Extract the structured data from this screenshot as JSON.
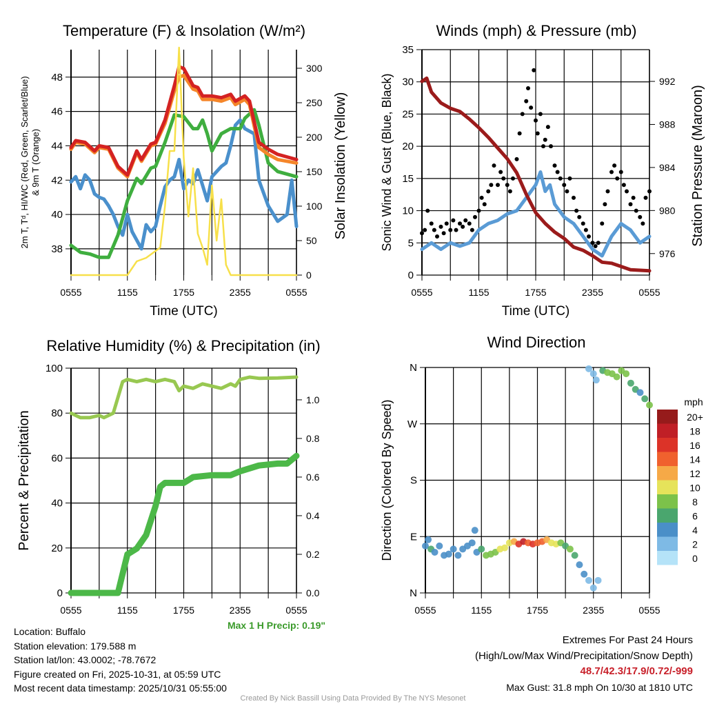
{
  "chart_data": [
    {
      "type": "line",
      "title": "Temperature (F) & Insolation (W/m²)",
      "xlabel": "Time (UTC)",
      "ylabel": [
        "2m T, Tᵈ, HI/WC (Red, Green, Scarlet/Blue)",
        "& 9m T (Orange)"
      ],
      "y2label": "Solar Insolation (Yellow)",
      "xticks": [
        "0555",
        "1155",
        "1755",
        "2355",
        "0555"
      ],
      "ylim": [
        36.47,
        49.6
      ],
      "yticks": [
        38,
        40,
        42,
        44,
        46,
        48
      ],
      "y2lim": [
        0,
        327
      ],
      "y2ticks": [
        0,
        50,
        100,
        150,
        200,
        250,
        300
      ],
      "series": [
        {
          "name": "HI/WC",
          "color": "#4a90cc",
          "axis": "left",
          "x": [
            0,
            0.5,
            1,
            1.5,
            2,
            2.5,
            3,
            3.5,
            4,
            4.5,
            5,
            5.5,
            6,
            6.5,
            7,
            7.5,
            8,
            8.5,
            9,
            9.5,
            10,
            10.5,
            11,
            11.5,
            12,
            12.5,
            13,
            13.5,
            14,
            14.5,
            15,
            16,
            16.5,
            17,
            17.5,
            18,
            18.5,
            19.5,
            20,
            21,
            22,
            23,
            23.5,
            24
          ],
          "y": [
            41.9,
            42.2,
            41.5,
            42.3,
            42.0,
            41.2,
            41.0,
            40.9,
            40.5,
            40.0,
            39.3,
            38.8,
            40.0,
            39.0,
            38.5,
            38.0,
            39.4,
            39.0,
            39.3,
            40.5,
            41.6,
            42.0,
            42.2,
            43.2,
            41.5,
            42.0,
            41.8,
            42.6,
            41.7,
            40.8,
            42.2,
            42.8,
            43.0,
            44.0,
            45.2,
            45.5,
            45.0,
            44.7,
            42.0,
            40.5,
            39.6,
            40.0,
            42.0,
            39.3
          ]
        },
        {
          "name": "Dew point",
          "color": "#3fae3f",
          "axis": "left",
          "x": [
            0,
            1,
            2,
            3,
            4,
            5,
            6,
            7,
            7.5,
            8.5,
            9,
            10,
            11,
            12,
            13,
            13.5,
            14,
            14.5,
            15,
            16,
            17,
            18,
            18.5,
            19.5,
            20,
            21,
            22,
            24
          ],
          "y": [
            38.2,
            37.8,
            37.7,
            37.5,
            37.5,
            38.8,
            40.8,
            42.1,
            41.8,
            42.7,
            42.8,
            44.2,
            45.8,
            45.7,
            45.0,
            45.0,
            45.5,
            44.7,
            43.7,
            44.7,
            45.0,
            45.0,
            45.6,
            46.1,
            45.2,
            43.0,
            42.5,
            42.2
          ]
        },
        {
          "name": "9m T",
          "color": "#f5862a",
          "axis": "left",
          "x": [
            0,
            0.5,
            1.5,
            2.5,
            3,
            4,
            5,
            6,
            7,
            7.5,
            8.5,
            9,
            10,
            11,
            11.5,
            12,
            13,
            13.5,
            14,
            15,
            16,
            17,
            17.5,
            18.5,
            19,
            20,
            21,
            22,
            24
          ],
          "y": [
            43.8,
            44.2,
            44.1,
            43.6,
            43.9,
            43.8,
            42.7,
            42.2,
            43.6,
            43.1,
            44.0,
            44.1,
            45.3,
            47.2,
            48.0,
            48.1,
            47.3,
            47.2,
            46.7,
            46.7,
            46.6,
            46.8,
            46.4,
            46.7,
            46.4,
            43.9,
            43.5,
            43.2,
            43.0
          ]
        },
        {
          "name": "2m T",
          "color": "#d42222",
          "axis": "left",
          "x": [
            0,
            0.5,
            1.5,
            2.5,
            3,
            4,
            5,
            6,
            7,
            7.5,
            8.5,
            9,
            10,
            11,
            11.5,
            12,
            13,
            13.5,
            14,
            15,
            16,
            17,
            17.5,
            18.5,
            19,
            20,
            21,
            22,
            24
          ],
          "y": [
            43.9,
            44.3,
            44.2,
            43.7,
            44.0,
            43.9,
            42.8,
            42.3,
            43.7,
            43.2,
            44.1,
            44.2,
            45.5,
            47.5,
            48.6,
            48.5,
            47.5,
            47.4,
            46.9,
            46.9,
            46.8,
            47.0,
            46.6,
            46.9,
            46.6,
            44.2,
            43.8,
            43.5,
            43.2
          ]
        },
        {
          "name": "Solar",
          "color": "#f7e04a",
          "axis": "right",
          "x": [
            0,
            6,
            6.5,
            7,
            8,
            9,
            9.5,
            10,
            10.5,
            11,
            11.5,
            12,
            12.5,
            13,
            13.5,
            14,
            14.5,
            15,
            15.5,
            16,
            16.5,
            17,
            24
          ],
          "y": [
            0,
            0,
            10,
            20,
            25,
            35,
            40,
            100,
            180,
            180,
            330,
            170,
            85,
            155,
            60,
            40,
            15,
            130,
            50,
            110,
            15,
            0,
            0
          ]
        }
      ]
    },
    {
      "type": "line",
      "title": "Winds (mph) & Pressure (mb)",
      "xlabel": "Time (UTC)",
      "ylabel": "Sonic Wind & Gust (Blue, Black)",
      "y2label": "Station Pressure (Maroon)",
      "xticks": [
        "0555",
        "1155",
        "1755",
        "2355",
        "0555"
      ],
      "ylim": [
        0,
        35
      ],
      "yticks": [
        0,
        5,
        10,
        15,
        20,
        25,
        30,
        35
      ],
      "y2lim": [
        974.0,
        994.95
      ],
      "y2ticks": [
        976,
        980,
        984,
        988,
        992
      ],
      "series": [
        {
          "name": "Wind",
          "color": "#5a9bd5",
          "axis": "left",
          "x": [
            0,
            1,
            2,
            3,
            4,
            5,
            6,
            7,
            8,
            9,
            10,
            11,
            12,
            12.5,
            13,
            13.5,
            14,
            15,
            16,
            17,
            18,
            19,
            20,
            21,
            22,
            23,
            24
          ],
          "y": [
            4,
            5,
            4,
            5,
            4.5,
            5,
            7,
            8,
            8.5,
            9.5,
            10,
            12,
            14,
            16,
            13,
            14,
            11,
            9,
            8,
            6,
            4,
            3,
            6,
            8,
            7,
            5,
            6
          ]
        },
        {
          "name": "Pressure",
          "color": "#9b1b1b",
          "axis": "right",
          "x": [
            0,
            0.5,
            1,
            2,
            3,
            4,
            5,
            6,
            7,
            8,
            9,
            10,
            11,
            12,
            13,
            14,
            15,
            16,
            17,
            18,
            19,
            20,
            21,
            22,
            24
          ],
          "y": [
            992.0,
            992.3,
            991.0,
            990.0,
            989.5,
            989.2,
            988.5,
            987.7,
            986.8,
            985.8,
            984.8,
            983.5,
            981.5,
            979.8,
            978.8,
            978.0,
            977.4,
            976.6,
            976.3,
            975.8,
            975.2,
            975.1,
            974.8,
            974.5,
            974.4
          ]
        },
        {
          "name": "Gust",
          "color": "#000000",
          "axis": "left",
          "type": "scatter",
          "x": [
            0,
            0.3,
            0.6,
            1,
            1.3,
            1.6,
            2,
            2.3,
            2.6,
            3,
            3.3,
            3.6,
            4,
            4.3,
            4.6,
            5,
            5.3,
            5.6,
            6,
            6.3,
            6.6,
            7,
            7.3,
            7.6,
            8,
            8.3,
            8.6,
            9,
            9.3,
            9.6,
            10,
            10.3,
            10.6,
            11,
            11.2,
            11.5,
            11.8,
            12,
            12.2,
            12.5,
            12.8,
            13,
            13.3,
            13.6,
            14,
            14.3,
            14.6,
            15,
            15.3,
            15.6,
            16,
            16.3,
            16.6,
            17,
            17.3,
            17.6,
            18,
            18.3,
            18.6,
            19,
            19.3,
            19.6,
            20,
            20.3,
            20.6,
            21,
            21.3,
            21.6,
            22,
            22.3,
            22.6,
            23,
            23.3,
            23.6,
            24
          ],
          "y": [
            6.5,
            7,
            10,
            8,
            7,
            6,
            7.5,
            6.5,
            8,
            7,
            8.5,
            7,
            8,
            7.5,
            8.5,
            8,
            7,
            9,
            10,
            12,
            11,
            13,
            14,
            17,
            14,
            16,
            15,
            14,
            13,
            15,
            18,
            22,
            25,
            27,
            29,
            26,
            31.8,
            24,
            22,
            25,
            20,
            21,
            23,
            20,
            17,
            16,
            15,
            14,
            13,
            15,
            12,
            10,
            9,
            8,
            7,
            6,
            5,
            4.5,
            5,
            8,
            11,
            13,
            16,
            17,
            15,
            16,
            14,
            13,
            11,
            12,
            10,
            9,
            8,
            12,
            13
          ]
        }
      ]
    },
    {
      "type": "line",
      "title": "Relative Humidity (%) & Precipitation (in)",
      "ylabel": "Percent & Precipitation",
      "xticks": [
        "0555",
        "1155",
        "1755",
        "2355",
        "0555"
      ],
      "ylim": [
        0,
        100
      ],
      "yticks": [
        0,
        20,
        40,
        60,
        80,
        100
      ],
      "y2lim": [
        0,
        1.164
      ],
      "y2ticks": [
        "0.0",
        "0.2",
        "0.4",
        "0.6",
        "0.8",
        "1.0"
      ],
      "annotation": "Max 1 H Precip: 0.19\"",
      "series": [
        {
          "name": "RH",
          "color": "#98c851",
          "axis": "left",
          "x": [
            0,
            1,
            2,
            3,
            3.5,
            4.5,
            5.5,
            6,
            7,
            8,
            9,
            10,
            11,
            11.5,
            12,
            13,
            14,
            15,
            16,
            17,
            17.5,
            18,
            19,
            20,
            22,
            24
          ],
          "y": [
            80,
            78,
            78,
            79,
            78,
            80,
            94,
            95,
            94,
            95,
            94,
            95,
            94,
            90,
            92,
            91,
            93,
            92,
            91,
            93,
            92,
            95,
            96,
            95.5,
            95.6,
            96
          ]
        },
        {
          "name": "Precip",
          "color": "#4cb848",
          "axis": "right",
          "x": [
            0,
            5,
            5.5,
            6,
            7,
            8,
            9,
            9.5,
            10,
            12,
            13,
            15,
            17,
            18,
            20,
            22,
            23,
            24
          ],
          "y": [
            0,
            0,
            0.1,
            0.2,
            0.23,
            0.3,
            0.45,
            0.55,
            0.57,
            0.57,
            0.6,
            0.61,
            0.61,
            0.63,
            0.66,
            0.67,
            0.67,
            0.71
          ]
        }
      ]
    },
    {
      "type": "scatter",
      "title": "Wind Direction",
      "ylabel": "Direction (Colored By Speed)",
      "xticks": [
        "0555",
        "1155",
        "1755",
        "2355",
        "0555"
      ],
      "ylim": [
        0,
        360
      ],
      "yticks": [
        "N",
        "E",
        "S",
        "W",
        "N"
      ],
      "colorbar": {
        "title": "mph",
        "labels": [
          "0",
          "2",
          "4",
          "6",
          "8",
          "10",
          "12",
          "14",
          "16",
          "18",
          "20+"
        ],
        "colors": [
          "#b5e3f8",
          "#7ebae5",
          "#4a8fc8",
          "#4aa66e",
          "#7cc24a",
          "#e6e35a",
          "#f6a947",
          "#f0612e",
          "#dc3328",
          "#c01f26",
          "#961b1b"
        ]
      },
      "points": [
        [
          0,
          75,
          3
        ],
        [
          0.3,
          85,
          3
        ],
        [
          0.6,
          70,
          6
        ],
        [
          1,
          65,
          4
        ],
        [
          1.5,
          75,
          3
        ],
        [
          2,
          60,
          3
        ],
        [
          2.5,
          62,
          4
        ],
        [
          3,
          70,
          4
        ],
        [
          3.5,
          60,
          3
        ],
        [
          4,
          70,
          4
        ],
        [
          4.5,
          75,
          3
        ],
        [
          5,
          80,
          4
        ],
        [
          5.3,
          100,
          4
        ],
        [
          5.5,
          65,
          4
        ],
        [
          6,
          70,
          6
        ],
        [
          6.5,
          60,
          7
        ],
        [
          7,
          62,
          8
        ],
        [
          7.5,
          65,
          8
        ],
        [
          8,
          70,
          10
        ],
        [
          8.5,
          72,
          9
        ],
        [
          9,
          80,
          10
        ],
        [
          9.5,
          82,
          12
        ],
        [
          10,
          78,
          16
        ],
        [
          10.5,
          82,
          18
        ],
        [
          11,
          80,
          14
        ],
        [
          11.5,
          78,
          16
        ],
        [
          12,
          80,
          13
        ],
        [
          12.5,
          82,
          14
        ],
        [
          13,
          85,
          12
        ],
        [
          13.5,
          80,
          10
        ],
        [
          14,
          78,
          10
        ],
        [
          14.5,
          80,
          7
        ],
        [
          15,
          75,
          6
        ],
        [
          15.5,
          70,
          8
        ],
        [
          16,
          60,
          5
        ],
        [
          16.5,
          45,
          4
        ],
        [
          17,
          30,
          3
        ],
        [
          17.5,
          20,
          2
        ],
        [
          18,
          8,
          2
        ],
        [
          18.5,
          20,
          2
        ],
        [
          17.5,
          358,
          1
        ],
        [
          18,
          350,
          2
        ],
        [
          18.3,
          340,
          1
        ],
        [
          19,
          355,
          6
        ],
        [
          19.5,
          352,
          7
        ],
        [
          20,
          350,
          8
        ],
        [
          20.5,
          345,
          8
        ],
        [
          21,
          355,
          7
        ],
        [
          21.5,
          350,
          8
        ],
        [
          22,
          335,
          6
        ],
        [
          22.5,
          325,
          5
        ],
        [
          23,
          320,
          4
        ],
        [
          23.5,
          310,
          5
        ],
        [
          24,
          300,
          7
        ]
      ]
    }
  ],
  "info": {
    "location": "Location: Buffalo",
    "elevation": "Station elevation: 179.588 m",
    "latlon": "Station lat/lon: 43.0002; -78.7672",
    "created": "Figure created on Fri, 2025-10-31, at 05:59 UTC",
    "recent": "Most recent data timestamp: 2025/10/31 05:55:00"
  },
  "extremes": {
    "title": "Extremes For Past 24 Hours",
    "subtitle": "(High/Low/Max Wind/Precipitation/Snow Depth)",
    "values": "48.7/42.3/17.9/0.72/-999",
    "gust": "Max Gust: 31.8 mph On 10/30 at 1810 UTC",
    "accent": "#c8202a"
  },
  "credit": "Created By Nick Bassill Using Data Provided By The NYS Mesonet"
}
